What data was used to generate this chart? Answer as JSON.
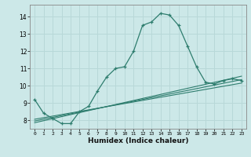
{
  "xlabel": "Humidex (Indice chaleur)",
  "background_color": "#cce8e8",
  "grid_color": "#b8d8d8",
  "line_color": "#2e7d6e",
  "xlim": [
    -0.5,
    23.5
  ],
  "ylim": [
    7.5,
    14.7
  ],
  "yticks": [
    8,
    9,
    10,
    11,
    12,
    13,
    14
  ],
  "xticks": [
    0,
    1,
    2,
    3,
    4,
    5,
    6,
    7,
    8,
    9,
    10,
    11,
    12,
    13,
    14,
    15,
    16,
    17,
    18,
    19,
    20,
    21,
    22,
    23
  ],
  "x_main": [
    0,
    1,
    2,
    3,
    4,
    5,
    6,
    7,
    8,
    9,
    10,
    11,
    12,
    13,
    14,
    15,
    16,
    17,
    18,
    19,
    20,
    21,
    22,
    23
  ],
  "y_main": [
    9.2,
    8.4,
    8.1,
    7.8,
    7.8,
    8.5,
    8.8,
    9.7,
    10.5,
    11.0,
    11.1,
    12.0,
    13.5,
    13.7,
    14.2,
    14.1,
    13.5,
    12.3,
    11.1,
    10.2,
    10.1,
    10.3,
    10.4,
    10.3
  ],
  "linear_series": [
    {
      "x": [
        0,
        23
      ],
      "y": [
        8.05,
        10.15
      ]
    },
    {
      "x": [
        0,
        23
      ],
      "y": [
        7.95,
        10.35
      ]
    },
    {
      "x": [
        0,
        23
      ],
      "y": [
        7.85,
        10.55
      ]
    }
  ]
}
